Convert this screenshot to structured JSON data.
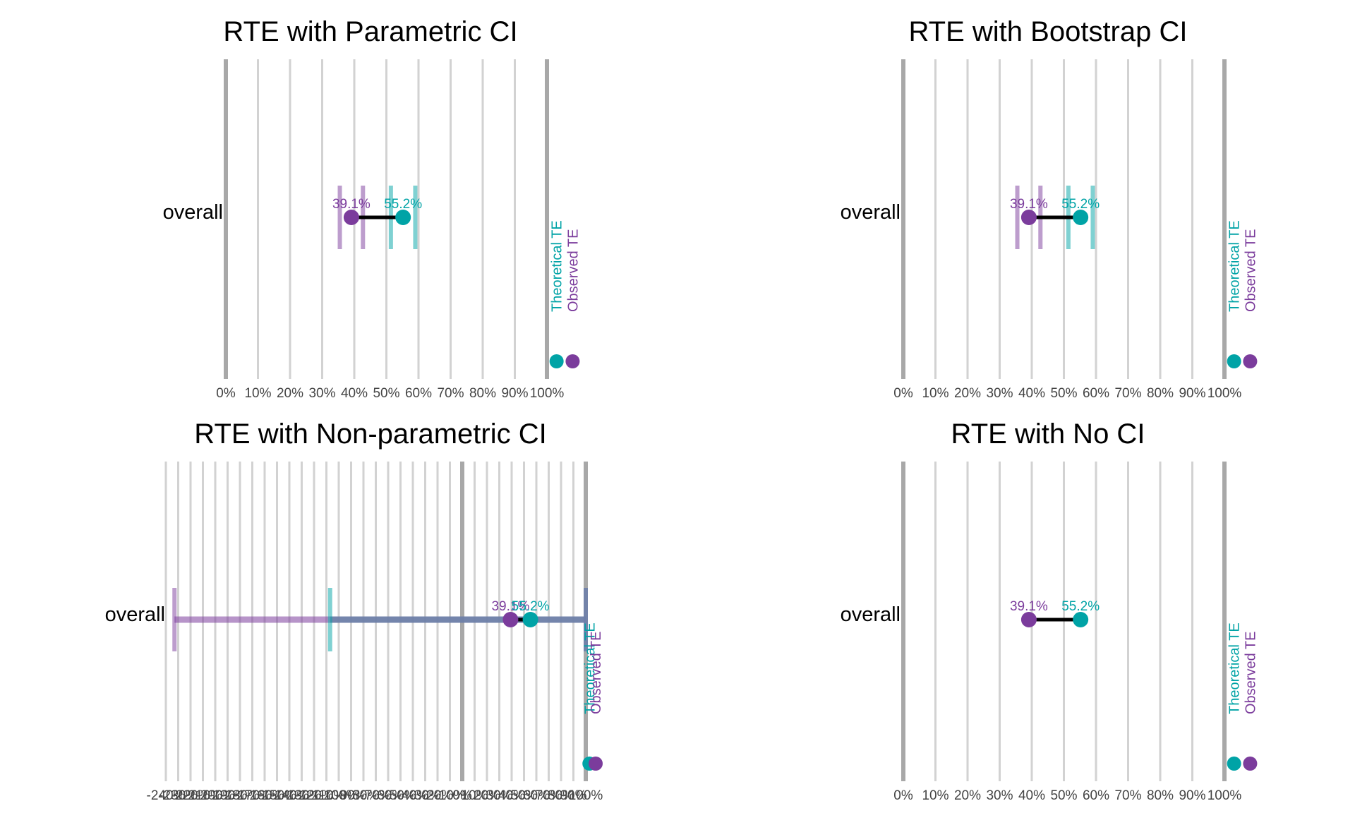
{
  "colors": {
    "theoretical": "#00a3a6",
    "observed": "#7b3c9c",
    "grid": "#d2d2d2",
    "axis_ref": "#a8a8a8",
    "connector": "#000000",
    "overlap_band": "#6d7ea8"
  },
  "chart_data": [
    {
      "type": "dot-range",
      "title": "RTE with Parametric CI",
      "category": "overall",
      "x_ticks": [
        0,
        10,
        20,
        30,
        40,
        50,
        60,
        70,
        80,
        90,
        100
      ],
      "x_tick_labels": [
        "0%",
        "10%",
        "20%",
        "30%",
        "40%",
        "50%",
        "60%",
        "70%",
        "80%",
        "90%",
        "100%"
      ],
      "xlim": [
        0,
        110
      ],
      "observed": {
        "value": 39.1,
        "label": "39.1%",
        "ci": [
          35.5,
          42.7
        ]
      },
      "theoretical": {
        "value": 55.2,
        "label": "55.2%",
        "ci": [
          51.4,
          59.0
        ]
      },
      "legend": {
        "theoretical": "Theoretical TE",
        "observed": "Observed TE"
      }
    },
    {
      "type": "dot-range",
      "title": "RTE with Bootstrap CI",
      "category": "overall",
      "x_ticks": [
        0,
        10,
        20,
        30,
        40,
        50,
        60,
        70,
        80,
        90,
        100
      ],
      "x_tick_labels": [
        "0%",
        "10%",
        "20%",
        "30%",
        "40%",
        "50%",
        "60%",
        "70%",
        "80%",
        "90%",
        "100%"
      ],
      "xlim": [
        0,
        110
      ],
      "observed": {
        "value": 39.1,
        "label": "39.1%",
        "ci": [
          35.5,
          42.7
        ]
      },
      "theoretical": {
        "value": 55.2,
        "label": "55.2%",
        "ci": [
          51.4,
          59.0
        ]
      },
      "legend": {
        "theoretical": "Theoretical TE",
        "observed": "Observed TE"
      }
    },
    {
      "type": "dot-range",
      "title": "RTE with Non-parametric CI",
      "category": "overall",
      "x_ticks": [
        -240,
        -230,
        -220,
        -210,
        -200,
        -190,
        -180,
        -170,
        -160,
        -150,
        -140,
        -130,
        -120,
        -110,
        -100,
        -90,
        -80,
        -70,
        -60,
        -50,
        -40,
        -30,
        -20,
        -10,
        0,
        10,
        20,
        30,
        40,
        50,
        60,
        70,
        80,
        90,
        100
      ],
      "x_tick_labels": [
        "-240%",
        "-230%",
        "-220%",
        "-210%",
        "-200%",
        "-190%",
        "-180%",
        "-170%",
        "-160%",
        "-150%",
        "-140%",
        "-130%",
        "-120%",
        "-110%",
        "-100%",
        "-90%",
        "-80%",
        "-70%",
        "-60%",
        "-50%",
        "-40%",
        "-30%",
        "-20%",
        "-10%",
        "0%",
        "10%",
        "20%",
        "30%",
        "40%",
        "50%",
        "60%",
        "70%",
        "80%",
        "90%",
        "100%"
      ],
      "xlim": [
        -240,
        110
      ],
      "observed": {
        "value": 39.1,
        "label": "39.1%",
        "ci": [
          -233,
          100
        ]
      },
      "theoretical": {
        "value": 55.2,
        "label": "55.2%",
        "ci": [
          -107,
          100
        ]
      },
      "legend": {
        "theoretical": "Theoretical TE",
        "observed": "Observed TE"
      }
    },
    {
      "type": "dot-range",
      "title": "RTE with No CI",
      "category": "overall",
      "x_ticks": [
        0,
        10,
        20,
        30,
        40,
        50,
        60,
        70,
        80,
        90,
        100
      ],
      "x_tick_labels": [
        "0%",
        "10%",
        "20%",
        "30%",
        "40%",
        "50%",
        "60%",
        "70%",
        "80%",
        "90%",
        "100%"
      ],
      "xlim": [
        0,
        110
      ],
      "observed": {
        "value": 39.1,
        "label": "39.1%",
        "ci": null
      },
      "theoretical": {
        "value": 55.2,
        "label": "55.2%",
        "ci": null
      },
      "legend": {
        "theoretical": "Theoretical TE",
        "observed": "Observed TE"
      }
    }
  ]
}
